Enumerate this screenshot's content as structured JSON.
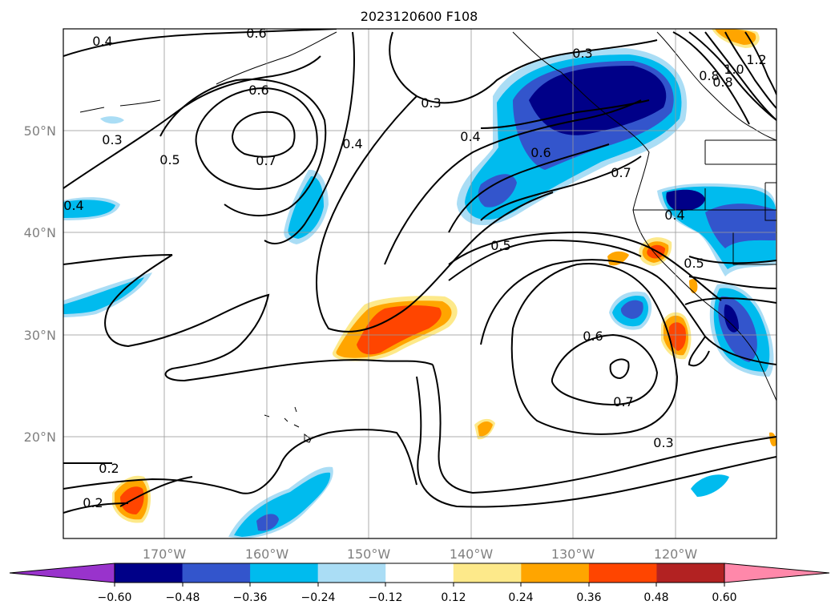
{
  "figure": {
    "title": "2023120600 F108"
  },
  "map": {
    "latitude_labels": [
      "50°N",
      "40°N",
      "30°N",
      "20°N"
    ],
    "longitude_labels": [
      "170°W",
      "160°W",
      "150°W",
      "140°W",
      "130°W",
      "120°W"
    ],
    "grid": true,
    "coastlines": true
  },
  "colorbar": {
    "extend": "both",
    "tick_labels": [
      "−0.60",
      "−0.48",
      "−0.36",
      "−0.24",
      "−0.12",
      "0.12",
      "0.24",
      "0.36",
      "0.48",
      "0.60"
    ],
    "colors": [
      "#9933cc",
      "#000088",
      "#3355cc",
      "#00bbee",
      "#aaddf5",
      "#ffffff",
      "#fde98a",
      "#ffa500",
      "#ff4500",
      "#b22222",
      "#ff88aa"
    ]
  },
  "contours": {
    "color": "#000000",
    "labels": [
      "0.4",
      "0.6",
      "0.6",
      "0.3",
      "0.5",
      "0.7",
      "0.4",
      "0.4",
      "0.3",
      "0.3",
      "0.4",
      "0.6",
      "0.7",
      "0.5",
      "0.4",
      "0.5",
      "0.6",
      "0.7",
      "0.3",
      "0.2",
      "0.2",
      "0.8",
      "0.8",
      "1.0",
      "1.2"
    ]
  }
}
